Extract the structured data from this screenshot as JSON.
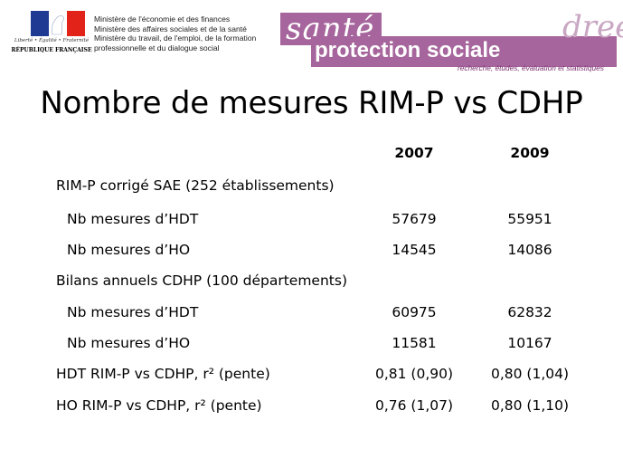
{
  "header": {
    "republic": {
      "motto": "Liberté • Égalité • Fraternité",
      "name": "RÉPUBLIQUE FRANÇAISE",
      "flag_colors": [
        "#1f3a93",
        "#ffffff",
        "#e2231a"
      ]
    },
    "ministries": [
      "Ministère de l'économie et des finances",
      "Ministère des affaires sociales et de la santé",
      "Ministère du travail, de l'emploi, de la formation",
      "professionnelle et du dialogue social"
    ],
    "banner": {
      "word1": "santé",
      "word2": "protection sociale",
      "brand": "drees",
      "tagline": "recherche, études, évaluation et statistiques",
      "accent_color": "#a6659c"
    }
  },
  "title": "Nombre de mesures RIM-P vs CDHP",
  "table": {
    "columns": [
      "2007",
      "2009"
    ],
    "rows": [
      {
        "label": "RIM-P corrigé SAE (252 établissements)",
        "indent": false,
        "values": [
          "",
          ""
        ]
      },
      {
        "label": "Nb mesures d’HDT",
        "indent": true,
        "values": [
          "57679",
          "55951"
        ]
      },
      {
        "label": "Nb mesures d’HO",
        "indent": true,
        "values": [
          "14545",
          "14086"
        ]
      },
      {
        "label": "Bilans annuels CDHP (100 départements)",
        "indent": false,
        "values": [
          "",
          ""
        ]
      },
      {
        "label": "Nb mesures d’HDT",
        "indent": true,
        "values": [
          "60975",
          "62832"
        ]
      },
      {
        "label": "Nb mesures d’HO",
        "indent": true,
        "values": [
          "11581",
          "10167"
        ]
      },
      {
        "label": "HDT RIM-P vs CDHP, r² (pente)",
        "indent": false,
        "values": [
          "0,81 (0,90)",
          "0,80 (1,04)"
        ]
      },
      {
        "label": "HO RIM-P vs CDHP, r² (pente)",
        "indent": false,
        "values": [
          "0,76 (1,07)",
          "0,80 (1,10)"
        ]
      }
    ]
  }
}
